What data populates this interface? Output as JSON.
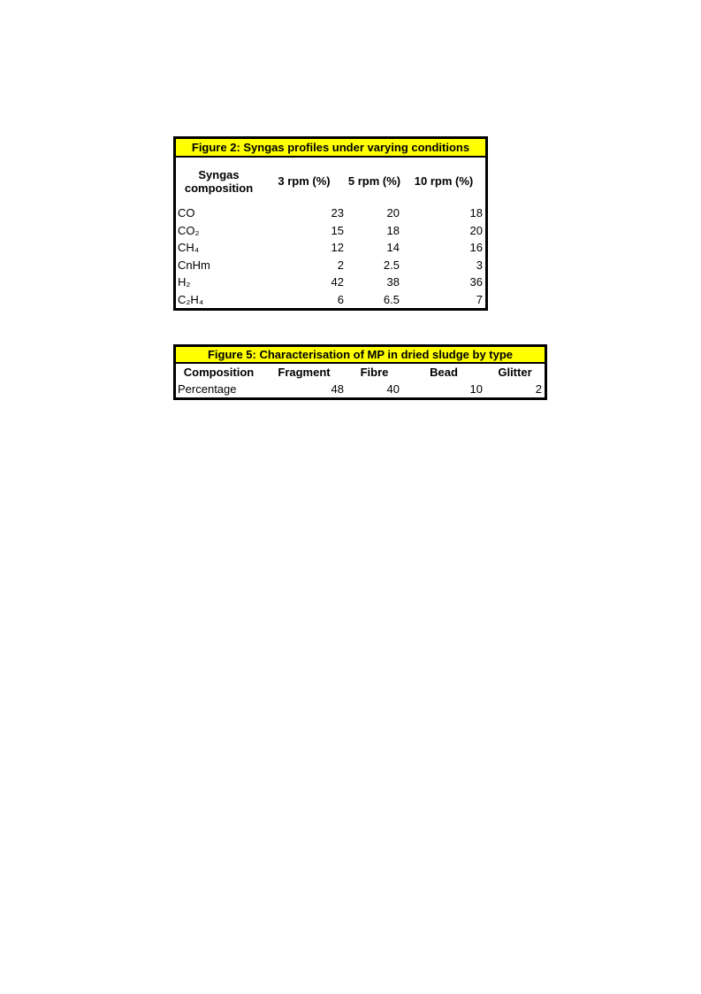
{
  "page": {
    "background": "#ffffff"
  },
  "colors": {
    "highlight": "#ffff00",
    "border": "#000000",
    "text": "#000000"
  },
  "figure2": {
    "title": "Figure 2: Syngas profiles under varying conditions",
    "columns": [
      "Syngas composition",
      "3 rpm (%)",
      "5 rpm (%)",
      "10 rpm (%)"
    ],
    "rows": [
      {
        "label": "CO",
        "values": [
          "23",
          "20",
          "18"
        ]
      },
      {
        "label": "CO₂",
        "values": [
          "15",
          "18",
          "20"
        ]
      },
      {
        "label": "CH₄",
        "values": [
          "12",
          "14",
          "16"
        ]
      },
      {
        "label": "CnHm",
        "values": [
          "2",
          "2.5",
          "3"
        ]
      },
      {
        "label": "H₂",
        "values": [
          "42",
          "38",
          "36"
        ]
      },
      {
        "label": "C₂H₄",
        "values": [
          "6",
          "6.5",
          "7"
        ]
      }
    ]
  },
  "figure5": {
    "title": "Figure 5: Characterisation of MP in dried sludge by type",
    "columns": [
      "Composition",
      "Fragment",
      "Fibre",
      "Bead",
      "Glitter"
    ],
    "rows": [
      {
        "label": "Percentage",
        "values": [
          "48",
          "40",
          "10",
          "2"
        ]
      }
    ]
  },
  "chart_data": [
    {
      "type": "table",
      "title": "Figure 2: Syngas profiles under varying conditions",
      "columns": [
        "Syngas composition",
        "3 rpm (%)",
        "5 rpm (%)",
        "10 rpm (%)"
      ],
      "rows": [
        [
          "CO",
          23,
          20,
          18
        ],
        [
          "CO2",
          15,
          18,
          20
        ],
        [
          "CH4",
          12,
          14,
          16
        ],
        [
          "CnHm",
          2,
          2.5,
          3
        ],
        [
          "H2",
          42,
          38,
          36
        ],
        [
          "C2H4",
          6,
          6.5,
          7
        ]
      ]
    },
    {
      "type": "table",
      "title": "Figure 5: Characterisation of MP in dried sludge by type",
      "columns": [
        "Composition",
        "Fragment",
        "Fibre",
        "Bead",
        "Glitter"
      ],
      "rows": [
        [
          "Percentage",
          48,
          40,
          10,
          2
        ]
      ]
    }
  ]
}
